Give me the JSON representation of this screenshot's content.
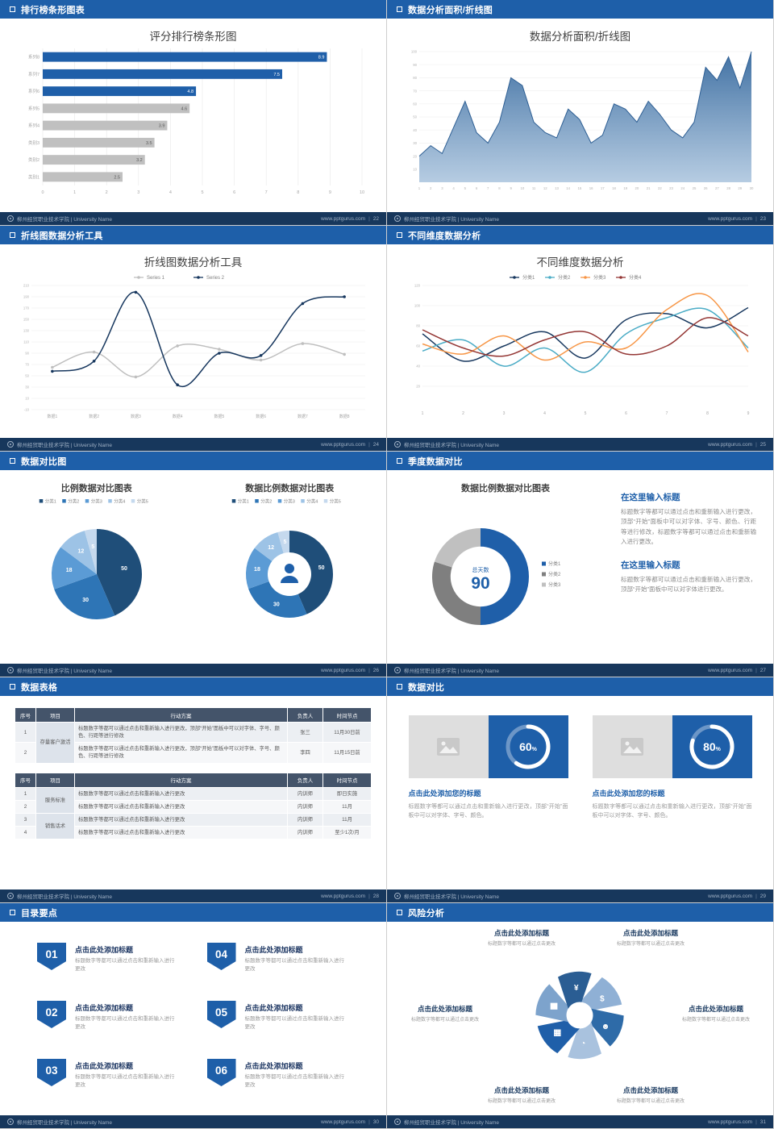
{
  "footer": {
    "school": "柳州经贸职业技术学院 | University Name",
    "site": "www.pptgurus.com",
    "separator": "|"
  },
  "chart_data": [
    {
      "type": "barh",
      "title": "评分排行榜条形图",
      "categories": [
        "系列8",
        "系列7",
        "系列6",
        "系列5",
        "系列4",
        "类别3",
        "类别2",
        "类别1"
      ],
      "values": [
        8.9,
        7.5,
        4.8,
        4.6,
        3.9,
        3.5,
        3.2,
        2.5
      ],
      "highlight_count": 3,
      "colors": {
        "highlight": "#1f5fa9",
        "muted": "#c0c0c0"
      },
      "xlim": [
        0,
        10
      ],
      "xticks": [
        0,
        1,
        2,
        3,
        4,
        5,
        6,
        7,
        8,
        9,
        10
      ]
    },
    {
      "type": "area",
      "title": "数据分析面积/折线图",
      "x": [
        1,
        2,
        3,
        4,
        5,
        6,
        7,
        8,
        9,
        10,
        11,
        12,
        13,
        14,
        15,
        16,
        17,
        18,
        19,
        20,
        21,
        22,
        23,
        24,
        25,
        26,
        27,
        28,
        29,
        30
      ],
      "values": [
        20,
        28,
        22,
        42,
        62,
        38,
        30,
        46,
        80,
        74,
        46,
        38,
        34,
        56,
        48,
        30,
        36,
        60,
        56,
        46,
        62,
        52,
        40,
        34,
        46,
        88,
        78,
        96,
        72,
        100
      ],
      "ylim": [
        0,
        100
      ],
      "yticks": [
        10,
        20,
        30,
        40,
        50,
        60,
        70,
        80,
        90,
        100
      ],
      "line_color": "#2e5f94",
      "fill_from": "#36699e",
      "fill_to": "#a9c3dd"
    },
    {
      "type": "line",
      "title": "折线图数据分析工具",
      "categories": [
        "数据1",
        "数据2",
        "数据3",
        "数据4",
        "数据5",
        "数据6",
        "数据7",
        "数据8"
      ],
      "ylim": [
        -10,
        210
      ],
      "yticks": [
        -10,
        10,
        30,
        50,
        70,
        90,
        110,
        130,
        150,
        170,
        190,
        210
      ],
      "smooth": true,
      "markers": true,
      "series": [
        {
          "name": "Series 1",
          "color": "#bfbfbf",
          "values": [
            65,
            92,
            48,
            103,
            97,
            78,
            107,
            88
          ]
        },
        {
          "name": "Series 2",
          "color": "#17375e",
          "values": [
            58,
            76,
            198,
            34,
            90,
            86,
            178,
            190
          ]
        }
      ]
    },
    {
      "type": "line",
      "title": "不同维度数据分析",
      "x": [
        1,
        2,
        3,
        4,
        5,
        6,
        7,
        8,
        9
      ],
      "ylim": [
        0,
        120
      ],
      "yticks": [
        20,
        40,
        60,
        80,
        100,
        120
      ],
      "smooth": true,
      "markers": false,
      "series": [
        {
          "name": "分类1",
          "color": "#17375e",
          "values": [
            72,
            45,
            60,
            74,
            48,
            86,
            92,
            78,
            98
          ]
        },
        {
          "name": "分类2",
          "color": "#4bacc6",
          "values": [
            55,
            66,
            40,
            58,
            34,
            72,
            88,
            96,
            58
          ]
        },
        {
          "name": "分类3",
          "color": "#f79646",
          "values": [
            62,
            52,
            70,
            46,
            64,
            58,
            96,
            110,
            54
          ]
        },
        {
          "name": "分类4",
          "color": "#943634",
          "values": [
            76,
            58,
            50,
            66,
            74,
            52,
            60,
            88,
            70
          ]
        }
      ]
    },
    {
      "type": "pie",
      "title": "比例数据对比图表",
      "labels": [
        "分类1",
        "分类2",
        "分类3",
        "分类4",
        "分类5"
      ],
      "values": [
        50,
        30,
        18,
        12,
        5
      ],
      "colors": [
        "#1f4e79",
        "#2e75b6",
        "#5b9bd5",
        "#9dc3e6",
        "#c5d9ee"
      ],
      "legend": "top"
    },
    {
      "type": "pie",
      "inner": 0.5,
      "title": "数据比例数据对比图表",
      "labels": [
        "分类1",
        "分类2",
        "分类3",
        "分类4",
        "分类5"
      ],
      "values": [
        50,
        30,
        18,
        12,
        5
      ],
      "colors": [
        "#1f4e79",
        "#2e75b6",
        "#5b9bd5",
        "#9dc3e6",
        "#c5d9ee"
      ],
      "legend": "top",
      "center_icon": "person"
    },
    {
      "type": "pie",
      "inner": 0.62,
      "title": "数据比例数据对比图表",
      "labels": [
        "分类1",
        "分类2",
        "分类3"
      ],
      "values": [
        50,
        30,
        20
      ],
      "colors": [
        "#1f5fa9",
        "#7f7f7f",
        "#c0c0c0"
      ],
      "legend": "side",
      "show_values": false,
      "center_text": {
        "label": "总天数",
        "value": "90"
      }
    },
    {
      "type": "ring",
      "percent": 60,
      "label": "60"
    },
    {
      "type": "ring",
      "percent": 80,
      "label": "80"
    }
  ],
  "slides": {
    "s1": {
      "header": "排行榜条形图表",
      "page": "22"
    },
    "s2": {
      "header": "数据分析面积/折线图",
      "page": "23"
    },
    "s3": {
      "header": "折线图数据分析工具",
      "page": "24"
    },
    "s4": {
      "header": "不同维度数据分析",
      "page": "25"
    },
    "s5": {
      "header": "数据对比图",
      "page": "26"
    },
    "s6": {
      "header": "季度数据对比",
      "page": "27",
      "blocks": [
        {
          "title": "在这里输入标题",
          "body": "标题数字等都可以通过点击和重新输入进行更改，顶部“开始”面板中可以对字体、字号、颜色、行距等进行修改，标题数字等都可以通过点击和重新输入进行更改。"
        },
        {
          "title": "在这里输入标题",
          "body": "标题数字等都可以通过点击和重新输入进行更改，顶部“开始”面板中可以对字体进行更改。"
        }
      ]
    },
    "s7": {
      "header": "数据表格",
      "page": "28",
      "table1": {
        "headers": [
          "序号",
          "项目",
          "行动方案",
          "负责人",
          "时间节点"
        ],
        "project": "存量客户激活",
        "rows": [
          {
            "no": "1",
            "plan": "标题数字等都可以通过点击和重新输入进行更改，顶部“开始”面板中可以对字体、字号、颜色、行距等进行修改",
            "owner": "张三",
            "time": "11月30日前"
          },
          {
            "no": "2",
            "plan": "标题数字等都可以通过点击和重新输入进行更改，顶部“开始”面板中可以对字体、字号、颜色、行距等进行修改",
            "owner": "李四",
            "time": "11月15日前"
          }
        ]
      },
      "table2": {
        "headers": [
          "序号",
          "项目",
          "行动方案",
          "负责人",
          "时间节点"
        ],
        "projects": [
          "服务标准",
          "销售话术"
        ],
        "rows": [
          {
            "no": "1",
            "plan": "标题数字等都可以通过点击和重新输入进行更改",
            "owner": "内训师",
            "time": "即日实施"
          },
          {
            "no": "2",
            "plan": "标题数字等都可以通过点击和重新输入进行更改",
            "owner": "内训师",
            "time": "11月"
          },
          {
            "no": "3",
            "plan": "标题数字等都可以通过点击和重新输入进行更改",
            "owner": "内训师",
            "time": "11月"
          },
          {
            "no": "4",
            "plan": "标题数字等都可以通过点击和重新输入进行更改",
            "owner": "内训师",
            "time": "至少1次/月"
          }
        ]
      }
    },
    "s8": {
      "header": "数据对比",
      "page": "29",
      "panels": [
        {
          "title": "点击此处添加您的标题",
          "body": "标题数字等都可以通过点击和重新输入进行更改，顶部“开始”面板中可以对字体、字号、颜色。"
        },
        {
          "title": "点击此处添加您的标题",
          "body": "标题数字等都可以通过点击和重新输入进行更改，顶部“开始”面板中可以对字体、字号、颜色。"
        }
      ]
    },
    "s9": {
      "header": "目录要点",
      "page": "30",
      "items": [
        {
          "num": "01",
          "title": "点击此处添加标题",
          "body": "标题数字等都可以通过点击和重新输入进行更改"
        },
        {
          "num": "02",
          "title": "点击此处添加标题",
          "body": "标题数字等都可以通过点击和重新输入进行更改"
        },
        {
          "num": "03",
          "title": "点击此处添加标题",
          "body": "标题数字等都可以通过点击和重新输入进行更改"
        },
        {
          "num": "04",
          "title": "点击此处添加标题",
          "body": "标题数字等都可以通过点击和重新输入进行更改"
        },
        {
          "num": "05",
          "title": "点击此处添加标题",
          "body": "标题数字等都可以通过点击和重新输入进行更改"
        },
        {
          "num": "06",
          "title": "点击此处添加标题",
          "body": "标题数字等都可以通过点击和重新输入进行更改"
        }
      ]
    },
    "s10": {
      "header": "风险分析",
      "page": "31",
      "items": [
        {
          "title": "点击此处添加标题",
          "body": "标题数字等都可以通过点击更改"
        },
        {
          "title": "点击此处添加标题",
          "body": "标题数字等都可以通过点击更改"
        },
        {
          "title": "点击此处添加标题",
          "body": "标题数字等都可以通过点击更改"
        },
        {
          "title": "点击此处添加标题",
          "body": "标题数字等都可以通过点击更改"
        },
        {
          "title": "点击此处添加标题",
          "body": "标题数字等都可以通过点击更改"
        },
        {
          "title": "点击此处添加标题",
          "body": "标题数字等都可以通过点击更改"
        }
      ],
      "wheel": {
        "petals": [
          {
            "glyph": "$",
            "icon": "coins-icon",
            "color": "#8fb0d5"
          },
          {
            "glyph": "☻",
            "icon": "people-icon",
            "color": "#2e6ba8"
          },
          {
            "glyph": "◔",
            "icon": "pie-chart-icon",
            "color": "#a9c2de"
          },
          {
            "glyph": "▦",
            "icon": "calendar-icon",
            "color": "#1f5fa9"
          },
          {
            "glyph": "▅",
            "icon": "bar-chart-icon",
            "color": "#7da3cc"
          },
          {
            "glyph": "¥",
            "icon": "money-bag-icon",
            "color": "#2a5d93"
          }
        ]
      }
    }
  }
}
